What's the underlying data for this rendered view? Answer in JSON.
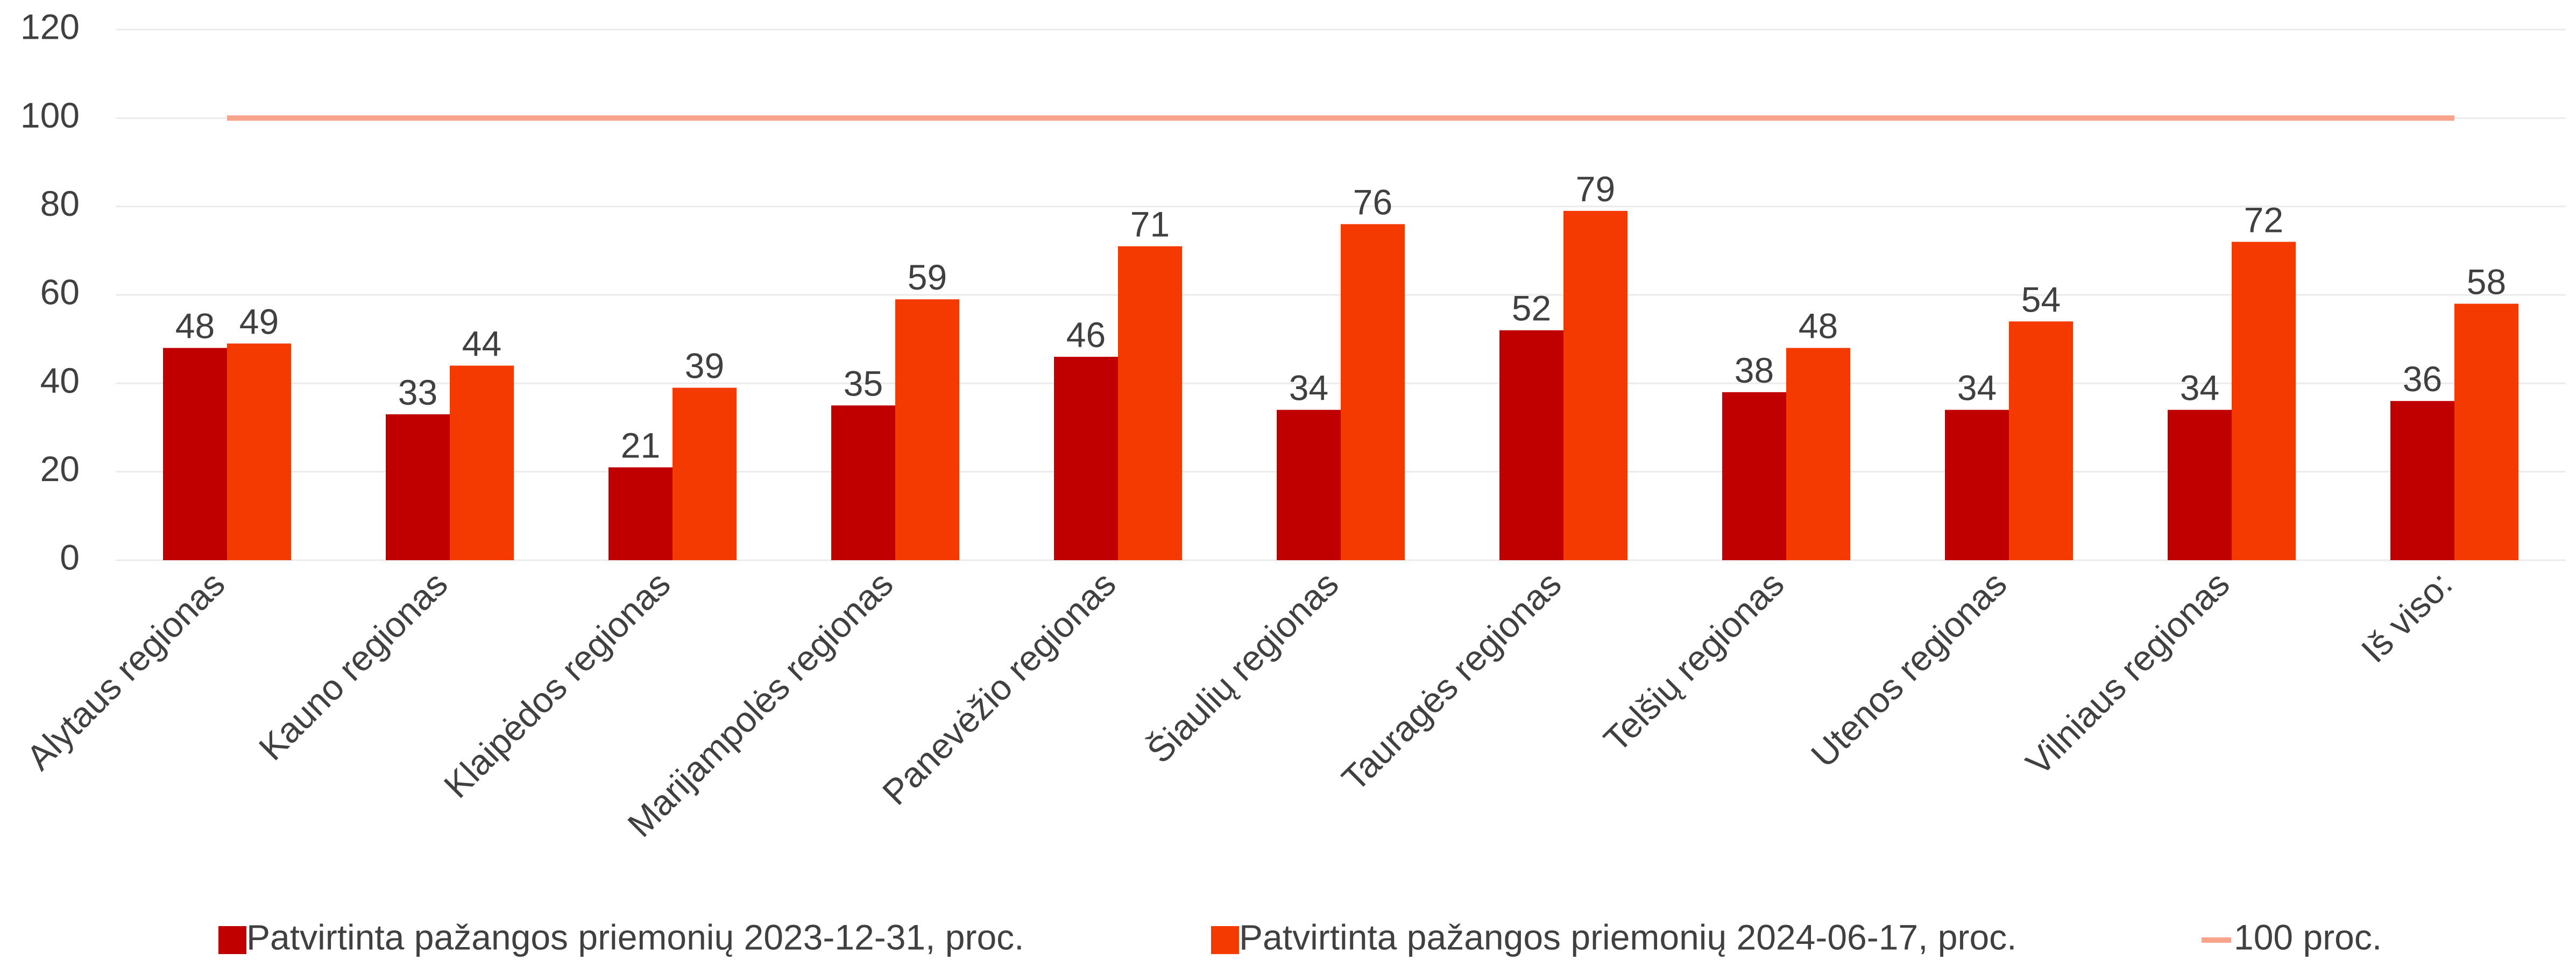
{
  "chart_data": {
    "type": "bar",
    "categories": [
      "Alytaus regionas",
      "Kauno regionas",
      "Klaipėdos regionas",
      "Marijampolės regionas",
      "Panevėžio regionas",
      "Šiaulių regionas",
      "Tauragės regionas",
      "Telšių regionas",
      "Utenos regionas",
      "Vilniaus regionas",
      "Iš viso:"
    ],
    "series": [
      {
        "name": "Patvirtinta pažangos priemonių 2023-12-31, proc.",
        "color": "#c00000",
        "values": [
          48,
          33,
          21,
          35,
          46,
          34,
          52,
          38,
          34,
          34,
          36
        ]
      },
      {
        "name": "Patvirtinta pažangos priemonių 2024-06-17, proc.",
        "color": "#f43a00",
        "values": [
          49,
          44,
          39,
          59,
          71,
          76,
          79,
          48,
          54,
          72,
          58
        ]
      },
      {
        "name": "100 proc.",
        "type": "line",
        "color": "#f8a48c",
        "values": [
          100,
          100,
          100,
          100,
          100,
          100,
          100,
          100,
          100,
          100,
          100
        ]
      }
    ],
    "ylim": [
      0,
      120
    ],
    "yticks": [
      0,
      20,
      40,
      60,
      80,
      100,
      120
    ],
    "grid": true,
    "legend": "bottom"
  }
}
